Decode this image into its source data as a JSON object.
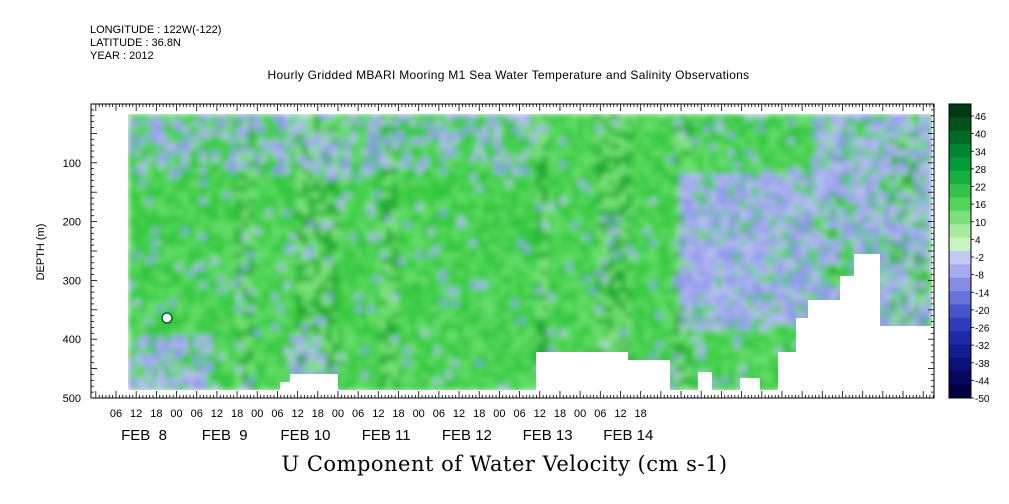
{
  "header": {
    "longitude": "LONGITUDE : 122W(-122)",
    "latitude": "LATITUDE : 36.8N",
    "year": "YEAR : 2012"
  },
  "chart_data": {
    "type": "heatmap",
    "title": "Hourly Gridded MBARI Mooring M1 Sea Water Temperature and Salinity Observations",
    "xlabel": "U Component of Water Velocity (cm s-1)",
    "ylabel": "DEPTH (m)",
    "ylim": [
      0,
      500
    ],
    "y_ticks": [
      100,
      200,
      300,
      400,
      500
    ],
    "y_reversed": true,
    "x_hour_ticks": [
      "06",
      "12",
      "18",
      "00",
      "06",
      "12",
      "18",
      "00",
      "06",
      "12",
      "18",
      "00",
      "06",
      "12",
      "18",
      "00",
      "06",
      "12",
      "18",
      "00",
      "06",
      "12",
      "18",
      "00",
      "06",
      "12",
      "18"
    ],
    "x_day_labels": [
      "FEB  8",
      "FEB  9",
      "FEB 10",
      "FEB 11",
      "FEB 12",
      "FEB 13",
      "FEB 14"
    ],
    "colorbar": {
      "labels": [
        "46",
        "40",
        "34",
        "28",
        "22",
        "16",
        "10",
        "4",
        "-2",
        "-8",
        "-14",
        "-20",
        "-26",
        "-32",
        "-38",
        "-44",
        "-50"
      ],
      "colors": [
        "#003a14",
        "#00511c",
        "#006a26",
        "#008430",
        "#009c38",
        "#16b040",
        "#33c24a",
        "#55d25a",
        "#7ee07a",
        "#a8eca2",
        "#c8f4c0",
        "#c4c8f4",
        "#a6acee",
        "#868ee4",
        "#6672da",
        "#4854cc",
        "#2e3cbc",
        "#1e2aa8",
        "#141c92",
        "#0c1078",
        "#06065e",
        "#000040"
      ]
    }
  }
}
